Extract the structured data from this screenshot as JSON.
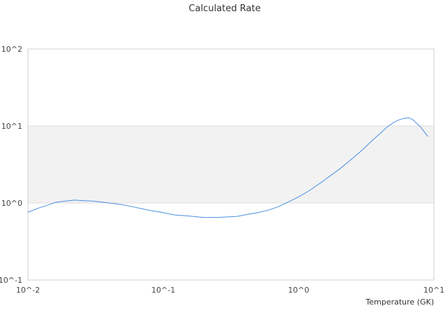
{
  "chart_data": {
    "type": "line",
    "title": "Calculated Rate",
    "xlabel": "Temperature (GK)",
    "ylabel": "",
    "x_scale": "log",
    "y_scale": "log",
    "xlim": [
      0.01,
      10
    ],
    "ylim": [
      0.1,
      100
    ],
    "x_ticks": [
      "10^-2",
      "10^-1",
      "10^0",
      "10^1"
    ],
    "y_ticks": [
      "10^2",
      "10^1",
      "10^0",
      "10^-1"
    ],
    "band": {
      "y_from": 1,
      "y_to": 10,
      "color": "#f2f2f2"
    },
    "series": [
      {
        "color": "#4a90e2",
        "x": [
          0.01,
          0.012,
          0.014,
          0.016,
          0.019,
          0.022,
          0.026,
          0.03,
          0.035,
          0.04,
          0.05,
          0.06,
          0.07,
          0.08,
          0.1,
          0.12,
          0.15,
          0.18,
          0.2,
          0.25,
          0.3,
          0.35,
          0.4,
          0.5,
          0.6,
          0.7,
          0.8,
          1.0,
          1.2,
          1.5,
          2.0,
          2.5,
          3.0,
          3.5,
          4.0,
          4.5,
          5.0,
          5.5,
          6.0,
          6.5,
          7.0,
          8.0,
          9.0
        ],
        "y": [
          0.76,
          0.86,
          0.94,
          1.02,
          1.06,
          1.09,
          1.07,
          1.06,
          1.03,
          1.0,
          0.95,
          0.89,
          0.84,
          0.8,
          0.75,
          0.7,
          0.68,
          0.66,
          0.65,
          0.65,
          0.66,
          0.67,
          0.7,
          0.75,
          0.81,
          0.89,
          0.99,
          1.2,
          1.45,
          1.9,
          2.75,
          3.8,
          5.0,
          6.5,
          8.0,
          9.7,
          11.0,
          12.0,
          12.6,
          12.8,
          12.0,
          9.6,
          7.3
        ]
      }
    ]
  }
}
